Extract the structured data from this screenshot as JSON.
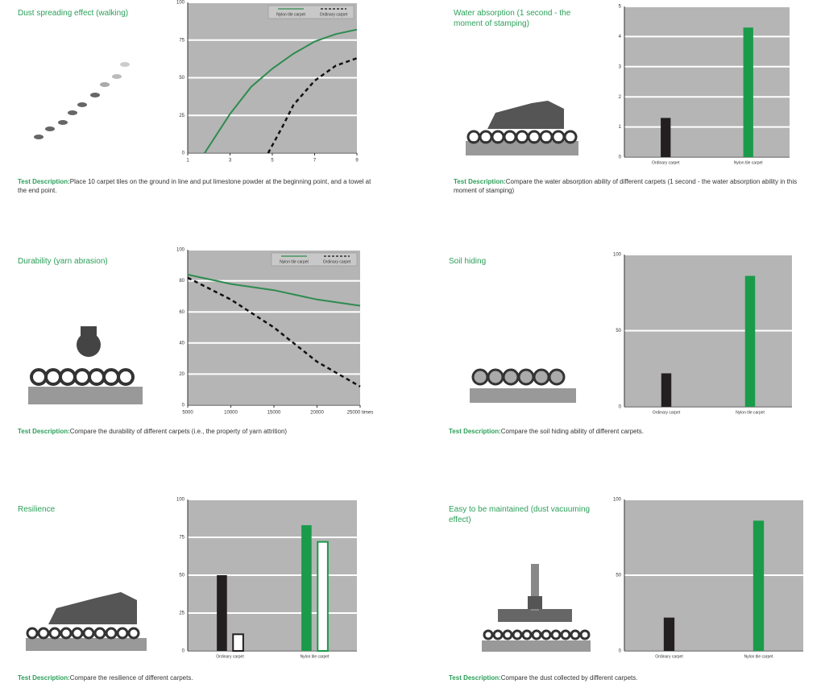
{
  "chart_data": [
    {
      "type": "line",
      "title": "Dust spreading effect (walking)",
      "description_label": "Test Description:",
      "description": "Place 10 carpet tiles on the ground in line and put limestone powder at the beginning point, and a towel at the end point.",
      "xlim": [
        1,
        9
      ],
      "xticks": [
        1,
        3,
        5,
        7,
        9
      ],
      "ylim": [
        0,
        100
      ],
      "yticks": [
        0,
        25,
        50,
        75,
        100
      ],
      "grid": true,
      "legend": "top-right",
      "series": [
        {
          "name": "Nylon tile carpet",
          "color": "#2e8b4f",
          "dashed": false,
          "x": [
            1.8,
            3,
            4,
            5,
            6,
            7,
            8,
            9
          ],
          "values": [
            0,
            26,
            44,
            56,
            66,
            74,
            79,
            82
          ]
        },
        {
          "name": "Ordinary carpet",
          "color": "#111111",
          "dashed": true,
          "x": [
            4.8,
            5.5,
            6,
            7,
            8,
            9
          ],
          "values": [
            0,
            18,
            32,
            48,
            58,
            63
          ]
        }
      ]
    },
    {
      "type": "bar",
      "title": "Water absorption (1 second - the moment of stamping)",
      "description_label": "Test Description:",
      "description": "Compare the water absorption ability of different carpets (1 second - the water absorption ability in this moment of stamping)",
      "categories": [
        "Ordinary carpet",
        "Nylon tile carpet"
      ],
      "colors": [
        "#231f20",
        "#1a9b4a"
      ],
      "ylim": [
        0,
        5
      ],
      "yticks": [
        0,
        1,
        2,
        3,
        4,
        5
      ],
      "grid": true,
      "series": [
        {
          "fill": "solid",
          "values": [
            1.3,
            4.3
          ]
        }
      ]
    },
    {
      "type": "line",
      "title": "Durability (yarn abrasion)",
      "description_label": "Test Description:",
      "description": "Compare the durability of different carpets (i.e., the property of yarn attrition)",
      "xlim": [
        5000,
        25000
      ],
      "xticks": [
        5000,
        10000,
        15000,
        20000,
        {
          "value": 25000,
          "label": "25000 times"
        }
      ],
      "ylim": [
        0,
        100
      ],
      "yticks": [
        0,
        20,
        40,
        60,
        80,
        100
      ],
      "grid": true,
      "legend": "top-right",
      "series": [
        {
          "name": "Nylon tile carpet",
          "color": "#2e8b4f",
          "dashed": false,
          "x": [
            5000,
            10000,
            15000,
            20000,
            25000
          ],
          "values": [
            84,
            78,
            74,
            68,
            64
          ]
        },
        {
          "name": "Ordinary carpet",
          "color": "#111111",
          "dashed": true,
          "x": [
            5000,
            10000,
            15000,
            20000,
            25000
          ],
          "values": [
            82,
            68,
            50,
            28,
            12
          ]
        }
      ]
    },
    {
      "type": "bar",
      "title": "Soil hiding",
      "description_label": "Test Description:",
      "description": "Compare the soil hiding ability of different carpets.",
      "categories": [
        "Ordinary carpet",
        "Nylon tile carpet"
      ],
      "colors": [
        "#231f20",
        "#1a9b4a"
      ],
      "ylim": [
        0,
        100
      ],
      "yticks": [
        0,
        50,
        100
      ],
      "grid": true,
      "series": [
        {
          "fill": "solid",
          "values": [
            22,
            86
          ]
        }
      ]
    },
    {
      "type": "bar",
      "title": "Resilience",
      "description_label": "Test Description:",
      "description": "Compare the resilience of different carpets.",
      "categories": [
        "Ordinary carpet",
        "Nylon tile carpet"
      ],
      "colors": [
        "#231f20",
        "#1a9b4a"
      ],
      "ylim": [
        0,
        100
      ],
      "yticks": [
        0,
        25,
        50,
        75,
        100
      ],
      "grid": true,
      "series": [
        {
          "fill": "solid",
          "values": [
            50,
            83
          ]
        },
        {
          "fill": "outline",
          "values": [
            11,
            72
          ]
        }
      ]
    },
    {
      "type": "bar",
      "title": "Easy to be maintained (dust vacuuming effect)",
      "description_label": "Test Description:",
      "description": "Compare the dust collected by different carpets.",
      "categories": [
        "Ordinary carpet",
        "Nylon tile carpet"
      ],
      "colors": [
        "#231f20",
        "#1a9b4a"
      ],
      "ylim": [
        0,
        100
      ],
      "yticks": [
        0,
        50,
        100
      ],
      "grid": true,
      "series": [
        {
          "fill": "solid",
          "values": [
            22,
            86
          ]
        }
      ]
    }
  ]
}
